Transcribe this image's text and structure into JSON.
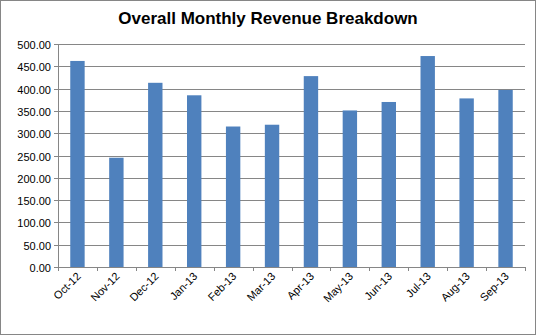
{
  "chart_data": {
    "type": "bar",
    "title": "Overall Monthly Revenue Breakdown",
    "categories": [
      "Oct-12",
      "Nov-12",
      "Dec-12",
      "Jan-13",
      "Feb-13",
      "Mar-13",
      "Apr-13",
      "May-13",
      "Jun-13",
      "Jul-13",
      "Aug-13",
      "Sep-13"
    ],
    "values": [
      462,
      245,
      413,
      385,
      315,
      319,
      428,
      351,
      370,
      473,
      378,
      397
    ],
    "color": "#4f81bd",
    "ylim": [
      0,
      500
    ],
    "yticks": [
      {
        "value": 0,
        "label": "0.00"
      },
      {
        "value": 50,
        "label": "50.00"
      },
      {
        "value": 100,
        "label": "100.00"
      },
      {
        "value": 150,
        "label": "150.00"
      },
      {
        "value": 200,
        "label": "200.00"
      },
      {
        "value": 250,
        "label": "250.00"
      },
      {
        "value": 300,
        "label": "300.00"
      },
      {
        "value": 350,
        "label": "350.00"
      },
      {
        "value": 400,
        "label": "400.00"
      },
      {
        "value": 450,
        "label": "450.00"
      },
      {
        "value": 500,
        "label": "500.00"
      }
    ],
    "grid": true
  }
}
